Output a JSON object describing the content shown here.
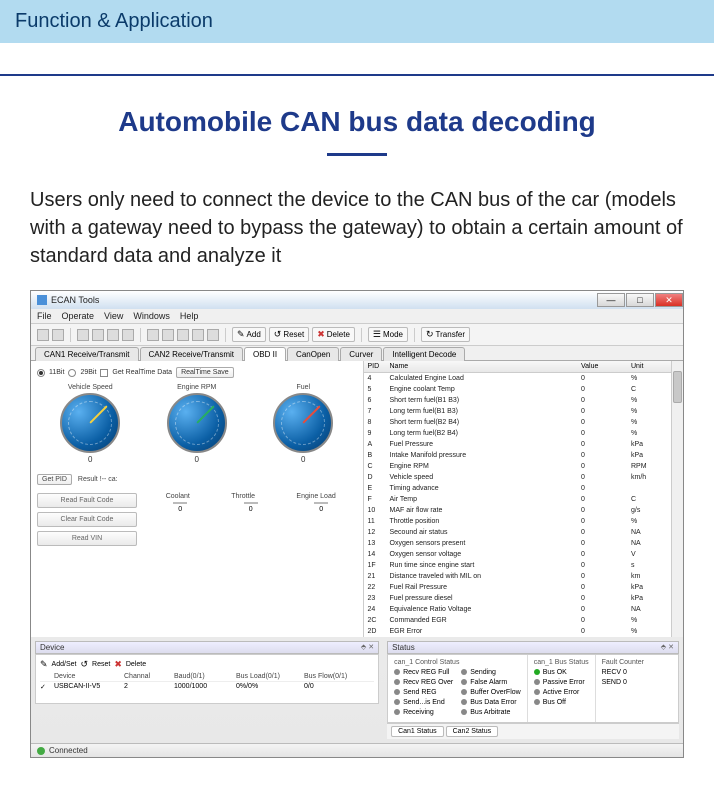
{
  "header": {
    "title": "Function & Application"
  },
  "main": {
    "title": "Automobile CAN bus data decoding",
    "description": "Users only need to connect the device to the CAN bus of the car (models with a gateway need to bypass the gateway) to obtain a certain amount of standard data and analyze it"
  },
  "window": {
    "title": "ECAN Tools",
    "menu": [
      "File",
      "Operate",
      "View",
      "Windows",
      "Help"
    ],
    "toolbar": {
      "add": "Add",
      "reset": "Reset",
      "delete": "Delete",
      "mode": "Mode",
      "transfer": "Transfer"
    },
    "tabs": [
      "CAN1 Receive/Transmit",
      "CAN2 Receive/Transmit",
      "OBD II",
      "CanOpen",
      "Curver",
      "Intelligent Decode"
    ],
    "active_tab": 2
  },
  "obd": {
    "radio1": "11Bit",
    "radio2": "29Bit",
    "realtime": "Get RealTime Data",
    "rt_save": "RealTime Save",
    "gauges": [
      {
        "label": "Vehicle Speed",
        "value": "0",
        "needle_color": "#f4d03f",
        "angle": -135
      },
      {
        "label": "Engine RPM",
        "value": "0",
        "needle_color": "#27ae60",
        "angle": -135
      },
      {
        "label": "Fuel",
        "value": "0",
        "needle_color": "#e74c3c",
        "angle": -135
      }
    ],
    "get_pid": "Get PID",
    "result_lbl": "Result !-- ca:",
    "btns": [
      "Read Fault Code",
      "Clear Fault Code",
      "Read VIN"
    ],
    "bars_labels": [
      "Coolant",
      "Throttle",
      "Engine Load"
    ],
    "bars": [
      {
        "value": "0",
        "fill": 12,
        "color": "#1e66c4"
      },
      {
        "value": "0",
        "fill": 0,
        "color": "#1e66c4"
      },
      {
        "value": "0",
        "fill": 0,
        "color": "#1e66c4"
      }
    ]
  },
  "pid": {
    "headers": [
      "PID",
      "Name",
      "Value",
      "Unit"
    ],
    "rows": [
      [
        "4",
        "Calculated Engine Load",
        "0",
        "%"
      ],
      [
        "5",
        "Engine coolant Temp",
        "0",
        "C"
      ],
      [
        "6",
        "Short term fuel(B1 B3)",
        "0",
        "%"
      ],
      [
        "7",
        "Long term fuel(B1 B3)",
        "0",
        "%"
      ],
      [
        "8",
        "Short term fuel(B2 B4)",
        "0",
        "%"
      ],
      [
        "9",
        "Long term fuel(B2 B4)",
        "0",
        "%"
      ],
      [
        "A",
        "Fuel Pressure",
        "0",
        "kPa"
      ],
      [
        "B",
        "Intake Manifold pressure",
        "0",
        "kPa"
      ],
      [
        "C",
        "Engine RPM",
        "0",
        "RPM"
      ],
      [
        "D",
        "Vehicle speed",
        "0",
        "km/h"
      ],
      [
        "E",
        "Timing advance",
        "0",
        ""
      ],
      [
        "F",
        "Air Temp",
        "0",
        "C"
      ],
      [
        "10",
        "MAF air flow rate",
        "0",
        "g/s"
      ],
      [
        "11",
        "Throttle position",
        "0",
        "%"
      ],
      [
        "12",
        "Secound air status",
        "0",
        "NA"
      ],
      [
        "13",
        "Oxygen sensors present",
        "0",
        "NA"
      ],
      [
        "14",
        "Oxygen sensor voltage",
        "0",
        "V"
      ],
      [
        "1F",
        "Run time since engine start",
        "0",
        "s"
      ],
      [
        "21",
        "Distance traveled with MIL on",
        "0",
        "km"
      ],
      [
        "22",
        "Fuel Rail Pressure",
        "0",
        "kPa"
      ],
      [
        "23",
        "Fuel pressure diesel",
        "0",
        "kPa"
      ],
      [
        "24",
        "Equivalence Ratio Voltage",
        "0",
        "NA"
      ],
      [
        "2C",
        "Commanded EGR",
        "0",
        "%"
      ],
      [
        "2D",
        "EGR Error",
        "0",
        "%"
      ]
    ]
  },
  "device": {
    "title": "Device",
    "add_set": "Add/Set",
    "reset": "Reset",
    "delete": "Delete",
    "headers": [
      "",
      "Device",
      "Channal",
      "Baud(0/1)",
      "Bus Load(0/1)",
      "Bus Flow(0/1)"
    ],
    "row": [
      "✓",
      "USBCAN-II-V5",
      "2",
      "1000/1000",
      "0%/0%",
      "0/0"
    ]
  },
  "status": {
    "title": "Status",
    "c1": {
      "h": "can_1 Control Status",
      "items": [
        [
          "Recv REG Full",
          "gray"
        ],
        [
          "Recv REG Over",
          "gray"
        ],
        [
          "Send REG",
          "gray"
        ],
        [
          "Send...is End",
          "gray"
        ],
        [
          "Receiving",
          "gray"
        ]
      ],
      "items2": [
        [
          "Sending",
          "gray"
        ],
        [
          "False Alarm",
          "gray"
        ],
        [
          "Buffer OverFlow",
          "gray"
        ],
        [
          "Bus Data Error",
          "gray"
        ],
        [
          "Bus Arbitrate",
          "gray"
        ]
      ]
    },
    "c2": {
      "h": "can_1 Bus Status",
      "items": [
        [
          "Bus OK",
          "green"
        ],
        [
          "Passive Error",
          "gray"
        ],
        [
          "Active Error",
          "gray"
        ],
        [
          "Bus Off",
          "gray"
        ]
      ]
    },
    "c3": {
      "h": "Fault Counter",
      "items": [
        "RECV  0",
        "SEND  0"
      ]
    },
    "tabs": [
      "Can1 Status",
      "Can2 Status"
    ]
  },
  "statusbar": {
    "text": "Connected"
  }
}
